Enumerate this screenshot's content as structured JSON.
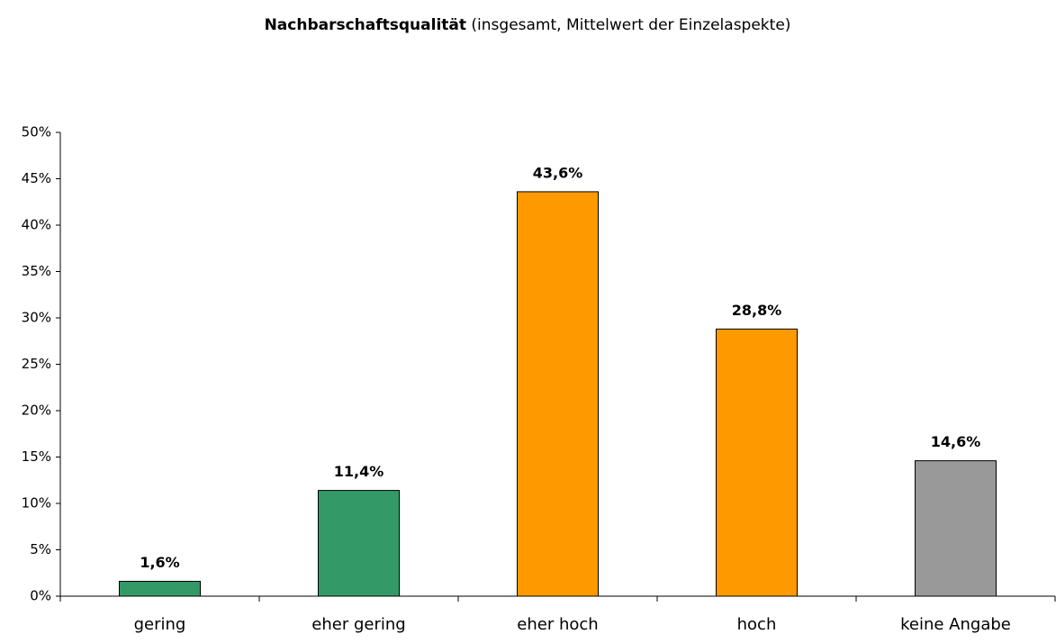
{
  "chart_data": {
    "type": "bar",
    "title": "Nachbarschaftsqualität",
    "subtitle": "(insgesamt, Mittelwert der Einzelaspekte)",
    "categories": [
      "gering",
      "eher gering",
      "eher hoch",
      "hoch",
      "keine Angabe"
    ],
    "values": [
      1.6,
      11.4,
      43.6,
      28.8,
      14.6
    ],
    "value_labels": [
      "1,6%",
      "11,4%",
      "43,6%",
      "28,8%",
      "14,6%"
    ],
    "colors": [
      "#339966",
      "#339966",
      "#ff9900",
      "#ff9900",
      "#999999"
    ],
    "ylim": [
      0,
      50
    ],
    "yticks": [
      {
        "value": 0,
        "label": "0%"
      },
      {
        "value": 5,
        "label": "5%"
      },
      {
        "value": 10,
        "label": "10%"
      },
      {
        "value": 15,
        "label": "15%"
      },
      {
        "value": 20,
        "label": "20%"
      },
      {
        "value": 25,
        "label": "25%"
      },
      {
        "value": 30,
        "label": "30%"
      },
      {
        "value": 35,
        "label": "35%"
      },
      {
        "value": 40,
        "label": "40%"
      },
      {
        "value": 45,
        "label": "45%"
      },
      {
        "value": 50,
        "label": "50%"
      }
    ],
    "grid": false
  }
}
